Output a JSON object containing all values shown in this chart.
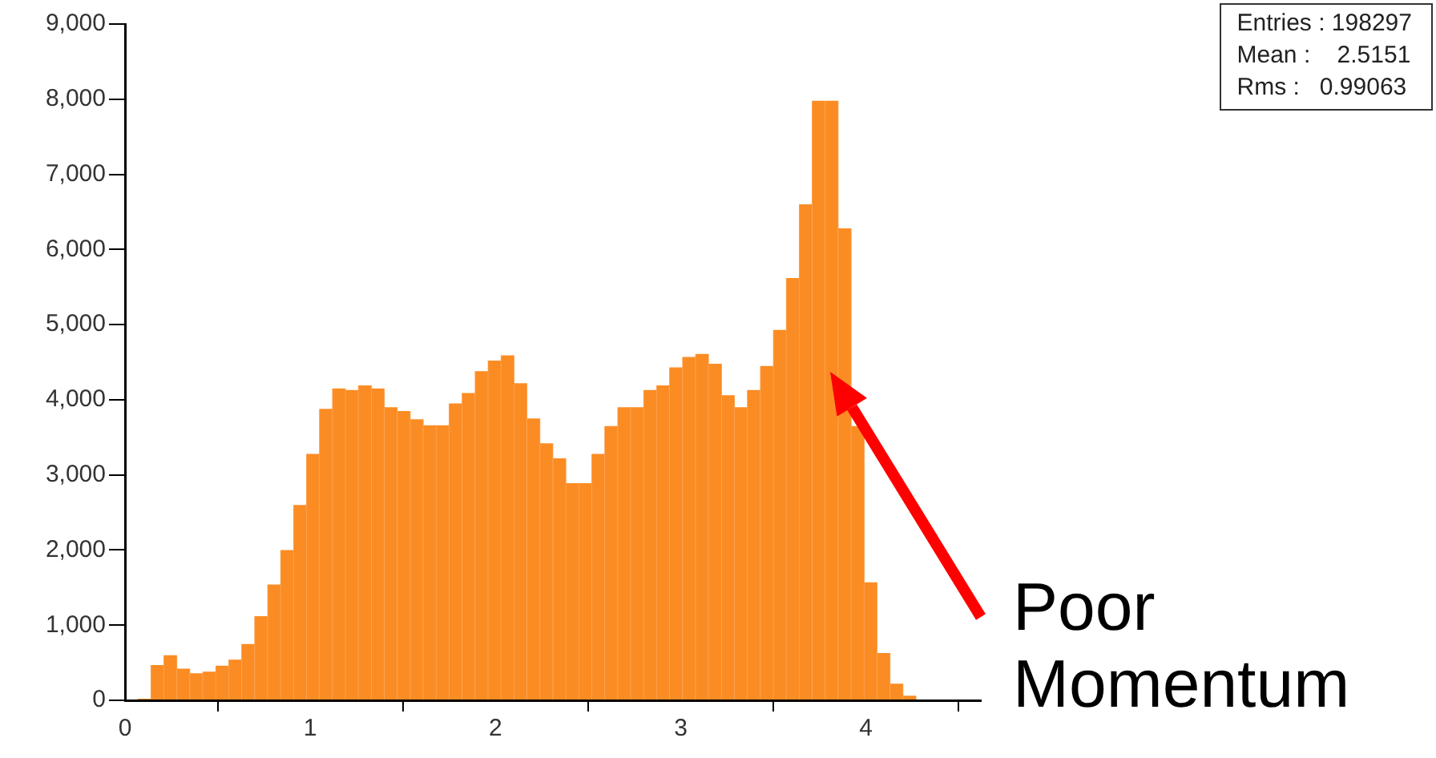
{
  "chart_data": {
    "type": "histogram",
    "bins": [
      0,
      0.07,
      0.14,
      0.21,
      0.28,
      0.35,
      0.42,
      0.49,
      0.56,
      0.63,
      0.7,
      0.77,
      0.84,
      0.91,
      0.98,
      1.05,
      1.12,
      1.19,
      1.26,
      1.33,
      1.4,
      1.47,
      1.54,
      1.61,
      1.68,
      1.75,
      1.82,
      1.89,
      1.96,
      2.03,
      2.1,
      2.17,
      2.24,
      2.31,
      2.38,
      2.45,
      2.52,
      2.59,
      2.66,
      2.73,
      2.8,
      2.87,
      2.94,
      3.01,
      3.08,
      3.15,
      3.22,
      3.29,
      3.36,
      3.43,
      3.5,
      3.57,
      3.64,
      3.71,
      3.78,
      3.85,
      3.92,
      3.99,
      4.06,
      4.13,
      4.2,
      4.27,
      4.34,
      4.41,
      4.48,
      4.55,
      4.62
    ],
    "values": [
      0,
      20,
      470,
      600,
      420,
      360,
      380,
      460,
      540,
      750,
      1120,
      1540,
      2000,
      2600,
      3280,
      3880,
      4150,
      4130,
      4190,
      4150,
      3900,
      3850,
      3740,
      3660,
      3660,
      3950,
      4090,
      4380,
      4520,
      4590,
      4220,
      3750,
      3420,
      3220,
      2890,
      2890,
      3280,
      3650,
      3900,
      3900,
      4130,
      4190,
      4430,
      4570,
      4610,
      4480,
      4060,
      3900,
      4130,
      4450,
      4930,
      5620,
      6600,
      7980,
      7980,
      6280,
      3650,
      1570,
      630,
      220,
      60,
      10,
      0,
      0,
      0,
      0
    ],
    "color": "#fb8c23",
    "xlim": [
      0,
      4.62
    ],
    "xticks": [
      0,
      1,
      2,
      3,
      4
    ],
    "ylim": [
      0,
      9000
    ],
    "yticks": [
      {
        "value": 0,
        "label": "0"
      },
      {
        "value": 1000,
        "label": "1,000"
      },
      {
        "value": 2000,
        "label": "2,000"
      },
      {
        "value": 3000,
        "label": "3,000"
      },
      {
        "value": 4000,
        "label": "4,000"
      },
      {
        "value": 5000,
        "label": "5,000"
      },
      {
        "value": 6000,
        "label": "6,000"
      },
      {
        "value": 7000,
        "label": "7,000"
      },
      {
        "value": 8000,
        "label": "8,000"
      },
      {
        "value": 9000,
        "label": "9,000"
      }
    ],
    "grid": false,
    "legend": false,
    "annotations": [
      "Entries : 198297",
      "Mean :    2.5151",
      "Rms :   0.99063",
      "Poor Momentum"
    ]
  }
}
